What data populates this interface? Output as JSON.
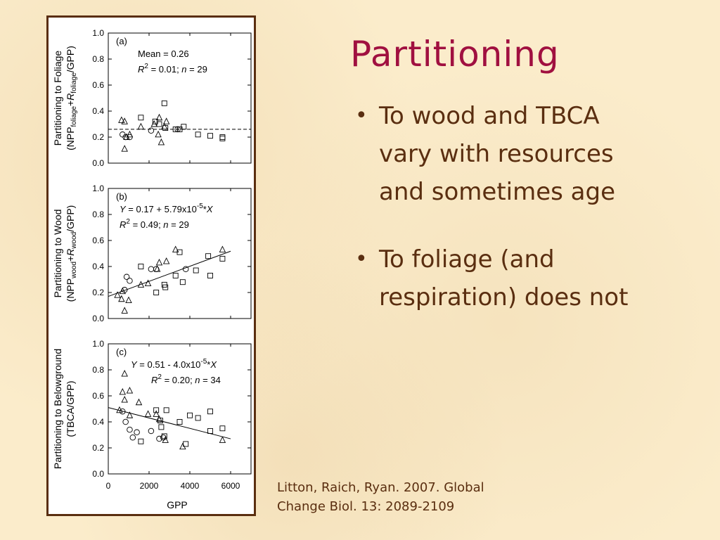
{
  "slide": {
    "title": "Partitioning",
    "bullets": [
      "To wood and TBCA vary with resources and sometimes age",
      "To foliage (and respiration) does not"
    ],
    "citation_line1": "Litton, Raich, Ryan. 2007. Global",
    "citation_line2": "Change Biol. 13: 2089-2109"
  },
  "chart_data": [
    {
      "type": "scatter",
      "panel_label": "(a)",
      "ylabel": "Partitioning to Foliage (NPPfoliage+Rfoliage/GPP)",
      "ylabel_line1": "Partitioning to Foliage",
      "ylabel_line2_parts": [
        "(NPP",
        "foliage",
        "+",
        "R",
        "foliage",
        "/GPP)"
      ],
      "xlim": [
        0,
        7000
      ],
      "ylim": [
        0,
        1.0
      ],
      "yticks": [
        "0.0",
        "0.2",
        "0.4",
        "0.6",
        "0.8",
        "1.0"
      ],
      "annotation_line1": "Mean = 0.26",
      "annotation_line2_parts": [
        "R",
        "2",
        " = 0.01; ",
        "n",
        " = 29"
      ],
      "mean_line": 0.26,
      "series": [
        {
          "marker": "triangle",
          "points": [
            [
              650,
              0.33
            ],
            [
              800,
              0.32
            ],
            [
              900,
              0.2
            ],
            [
              800,
              0.11
            ],
            [
              1050,
              0.22
            ],
            [
              1600,
              0.28
            ],
            [
              2250,
              0.3
            ],
            [
              2450,
              0.22
            ],
            [
              2600,
              0.16
            ],
            [
              2500,
              0.35
            ],
            [
              2850,
              0.32
            ],
            [
              2750,
              0.28
            ]
          ]
        },
        {
          "marker": "square",
          "points": [
            [
              1600,
              0.35
            ],
            [
              2300,
              0.32
            ],
            [
              2500,
              0.3
            ],
            [
              2750,
              0.46
            ],
            [
              2800,
              0.27
            ],
            [
              3300,
              0.26
            ],
            [
              3500,
              0.26
            ],
            [
              3700,
              0.28
            ],
            [
              4400,
              0.22
            ],
            [
              5000,
              0.21
            ],
            [
              5600,
              0.19
            ],
            [
              5600,
              0.2
            ]
          ]
        },
        {
          "marker": "circle",
          "points": [
            [
              700,
              0.22
            ],
            [
              850,
              0.2
            ],
            [
              1050,
              0.2
            ],
            [
              2100,
              0.25
            ],
            [
              3400,
              0.26
            ]
          ]
        }
      ]
    },
    {
      "type": "scatter",
      "panel_label": "(b)",
      "ylabel": "Partitioning to Wood (NPPwood+Rwood/GPP)",
      "ylabel_line1": "Partitioning to Wood",
      "ylabel_line2_parts": [
        "(NPP",
        "wood",
        "+",
        "R",
        "wood",
        "/GPP)"
      ],
      "xlim": [
        0,
        7000
      ],
      "ylim": [
        0,
        1.0
      ],
      "yticks": [
        "0.0",
        "0.2",
        "0.4",
        "0.6",
        "0.8",
        "1.0"
      ],
      "annotation_line1_parts": [
        "Y",
        " = 0.17 + 5.79x10",
        "-5",
        "*",
        "X"
      ],
      "annotation_line2_parts": [
        "R",
        "2",
        " = 0.49; ",
        "n",
        " = 29"
      ],
      "fit_line": {
        "intercept": 0.17,
        "slope": 5.79e-05,
        "x_range": [
          0,
          6000
        ]
      },
      "series": [
        {
          "marker": "triangle",
          "points": [
            [
              450,
              0.18
            ],
            [
              650,
              0.15
            ],
            [
              700,
              0.21
            ],
            [
              800,
              0.06
            ],
            [
              1000,
              0.14
            ],
            [
              1600,
              0.26
            ],
            [
              1950,
              0.27
            ],
            [
              2400,
              0.38
            ],
            [
              2500,
              0.43
            ],
            [
              2850,
              0.44
            ],
            [
              3300,
              0.53
            ],
            [
              5600,
              0.53
            ]
          ]
        },
        {
          "marker": "square",
          "points": [
            [
              1600,
              0.4
            ],
            [
              2350,
              0.2
            ],
            [
              2750,
              0.26
            ],
            [
              2800,
              0.24
            ],
            [
              3300,
              0.33
            ],
            [
              3500,
              0.51
            ],
            [
              3650,
              0.28
            ],
            [
              4300,
              0.37
            ],
            [
              4900,
              0.48
            ],
            [
              5000,
              0.33
            ],
            [
              5600,
              0.46
            ]
          ]
        },
        {
          "marker": "circle",
          "points": [
            [
              800,
              0.22
            ],
            [
              900,
              0.32
            ],
            [
              1050,
              0.29
            ],
            [
              2100,
              0.38
            ],
            [
              2350,
              0.38
            ],
            [
              3800,
              0.38
            ]
          ]
        }
      ]
    },
    {
      "type": "scatter",
      "panel_label": "(c)",
      "ylabel": "Partitioning to Belowground (TBCA/GPP)",
      "ylabel_line1": "Partitioning to Belowground",
      "ylabel_line2": "(TBCA/GPP)",
      "xlabel": "GPP",
      "xlim": [
        0,
        7000
      ],
      "ylim": [
        0,
        1.0
      ],
      "xticks": [
        "0",
        "2000",
        "4000",
        "6000"
      ],
      "yticks": [
        "0.0",
        "0.2",
        "0.4",
        "0.6",
        "0.8",
        "1.0"
      ],
      "annotation_line1_parts": [
        "Y",
        " = 0.51 - 4.0x10",
        "-5",
        "*",
        "X"
      ],
      "annotation_line2_parts": [
        "R",
        "2",
        " = 0.20; ",
        "n",
        " = 34"
      ],
      "fit_line": {
        "intercept": 0.51,
        "slope": -4e-05,
        "x_range": [
          0,
          6000
        ]
      },
      "series": [
        {
          "marker": "triangle",
          "points": [
            [
              550,
              0.49
            ],
            [
              700,
              0.63
            ],
            [
              800,
              0.77
            ],
            [
              800,
              0.57
            ],
            [
              1050,
              0.64
            ],
            [
              1050,
              0.45
            ],
            [
              1500,
              0.55
            ],
            [
              1950,
              0.46
            ],
            [
              2350,
              0.46
            ],
            [
              2500,
              0.42
            ],
            [
              2800,
              0.26
            ],
            [
              3650,
              0.21
            ],
            [
              5600,
              0.26
            ]
          ]
        },
        {
          "marker": "square",
          "points": [
            [
              1600,
              0.25
            ],
            [
              2350,
              0.49
            ],
            [
              2550,
              0.41
            ],
            [
              2600,
              0.36
            ],
            [
              2750,
              0.29
            ],
            [
              2850,
              0.49
            ],
            [
              3500,
              0.4
            ],
            [
              3800,
              0.23
            ],
            [
              4000,
              0.45
            ],
            [
              4400,
              0.43
            ],
            [
              5000,
              0.33
            ],
            [
              5000,
              0.48
            ],
            [
              5600,
              0.35
            ]
          ]
        },
        {
          "marker": "circle",
          "points": [
            [
              700,
              0.48
            ],
            [
              850,
              0.4
            ],
            [
              1050,
              0.34
            ],
            [
              1200,
              0.28
            ],
            [
              1400,
              0.32
            ],
            [
              2100,
              0.33
            ],
            [
              2500,
              0.27
            ],
            [
              2700,
              0.28
            ]
          ]
        }
      ]
    }
  ]
}
